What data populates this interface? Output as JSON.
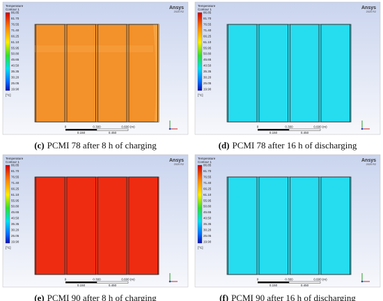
{
  "legend": {
    "title": "Temperature",
    "subtitle": "Contour 1",
    "values": [
      "86.85",
      "81.70",
      "76.55",
      "71.40",
      "66.25",
      "61.10",
      "55.95",
      "50.80",
      "45.65",
      "40.50",
      "35.35",
      "30.20",
      "25.05",
      "19.90"
    ],
    "unit": "[°C]"
  },
  "brand": {
    "name": "Ansys",
    "version": "2020 R2"
  },
  "scale": {
    "top": [
      "0",
      "0.300",
      "0.600 (m)"
    ],
    "bottom": [
      "0.150",
      "0.450"
    ]
  },
  "panels": [
    {
      "label": "(c)",
      "caption": "PCMI 78 after 8 h of charging",
      "color": "#f3912a"
    },
    {
      "label": "(d)",
      "caption": "PCMI 78 after 16 h of discharging",
      "color": "#26dcef"
    },
    {
      "label": "(e)",
      "caption": "PCMI 90 after 8 h of charging",
      "color": "#ee2c12"
    },
    {
      "label": "(f)",
      "caption": "PCMI 90 after 16 h of discharging",
      "color": "#26dcef"
    }
  ]
}
